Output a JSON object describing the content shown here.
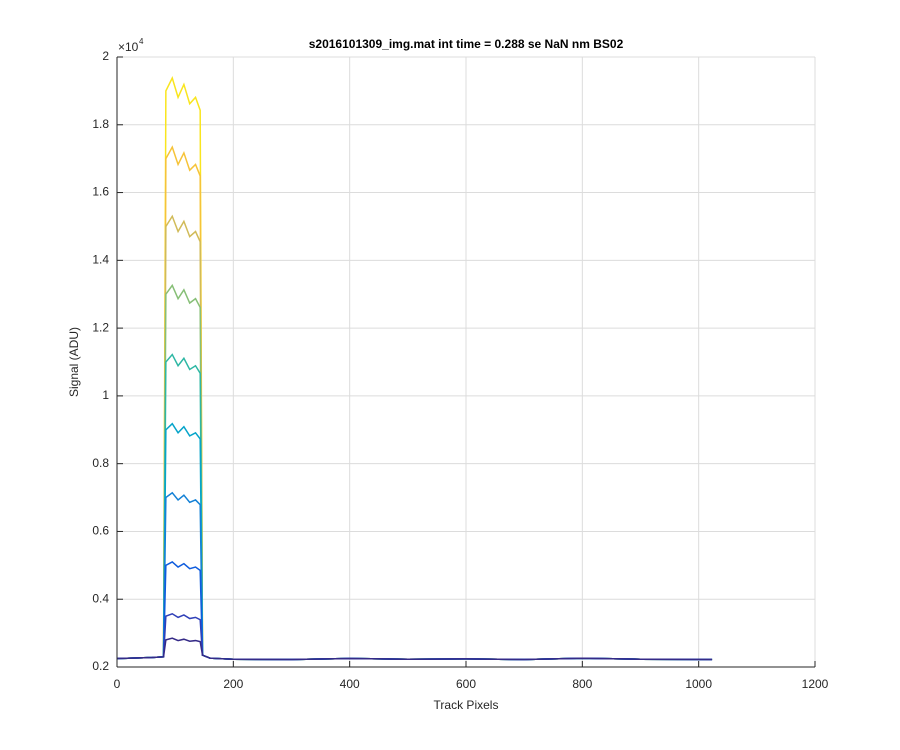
{
  "chart_data": {
    "type": "line",
    "title": "s2016101309_img.mat int time = 0.288 se  NaN nm BS02",
    "x_label": "Track Pixels",
    "y_label": "Signal (ADU)",
    "y_multiplier": {
      "base": "×10",
      "exponent": "4"
    },
    "xlim": [
      0,
      1200
    ],
    "xticks": [
      0,
      200,
      400,
      600,
      800,
      1000,
      1200
    ],
    "ylim": [
      2000,
      20000
    ],
    "yticks": [
      {
        "value": 2000,
        "label": "0.2"
      },
      {
        "value": 4000,
        "label": "0.4"
      },
      {
        "value": 6000,
        "label": "0.6"
      },
      {
        "value": 8000,
        "label": "0.8"
      },
      {
        "value": 10000,
        "label": "1"
      },
      {
        "value": 12000,
        "label": "1.2"
      },
      {
        "value": 14000,
        "label": "1.4"
      },
      {
        "value": 16000,
        "label": "1.6"
      },
      {
        "value": 18000,
        "label": "1.8"
      },
      {
        "value": 20000,
        "label": "2"
      }
    ],
    "grid": true,
    "x": [
      0,
      60,
      80,
      84,
      95,
      105,
      115,
      125,
      135,
      143,
      147,
      160,
      200,
      300,
      400,
      500,
      600,
      700,
      800,
      900,
      1023
    ],
    "series": [
      {
        "color": "#f9e51e",
        "values": [
          2250,
          2280,
          2300,
          19000,
          19380,
          18810,
          19190,
          18620,
          18810,
          18430,
          2350,
          2260,
          2230,
          2220,
          2250,
          2230,
          2240,
          2220,
          2260,
          2230,
          2220
        ]
      },
      {
        "color": "#f6c339",
        "values": [
          2250,
          2280,
          2300,
          17000,
          17340,
          16830,
          17170,
          16660,
          16830,
          16490,
          2350,
          2260,
          2230,
          2220,
          2250,
          2230,
          2240,
          2220,
          2260,
          2230,
          2220
        ]
      },
      {
        "color": "#d1bb59",
        "values": [
          2250,
          2280,
          2300,
          15000,
          15300,
          14850,
          15150,
          14700,
          14850,
          14550,
          2350,
          2260,
          2230,
          2220,
          2250,
          2230,
          2240,
          2220,
          2260,
          2230,
          2220
        ]
      },
      {
        "color": "#87bf77",
        "values": [
          2250,
          2280,
          2300,
          13000,
          13260,
          12870,
          13130,
          12740,
          12870,
          12610,
          2350,
          2260,
          2230,
          2220,
          2250,
          2230,
          2240,
          2220,
          2260,
          2230,
          2220
        ]
      },
      {
        "color": "#2eb7a4",
        "values": [
          2250,
          2280,
          2300,
          11000,
          11220,
          10890,
          11110,
          10780,
          10890,
          10670,
          2350,
          2260,
          2230,
          2220,
          2250,
          2230,
          2240,
          2220,
          2260,
          2230,
          2220
        ]
      },
      {
        "color": "#06a4ca",
        "values": [
          2250,
          2280,
          2300,
          9000,
          9180,
          8910,
          9090,
          8820,
          8910,
          8730,
          2350,
          2260,
          2230,
          2220,
          2250,
          2230,
          2240,
          2220,
          2260,
          2230,
          2220
        ]
      },
      {
        "color": "#1481d6",
        "values": [
          2250,
          2280,
          2300,
          7000,
          7140,
          6930,
          7070,
          6860,
          6930,
          6790,
          2350,
          2260,
          2230,
          2220,
          2250,
          2230,
          2240,
          2220,
          2260,
          2230,
          2220
        ]
      },
      {
        "color": "#0f5cdd",
        "values": [
          2250,
          2280,
          2300,
          5000,
          5100,
          4950,
          5050,
          4900,
          4950,
          4850,
          2350,
          2260,
          2230,
          2220,
          2250,
          2230,
          2240,
          2220,
          2260,
          2230,
          2220
        ]
      },
      {
        "color": "#3040b8",
        "values": [
          2250,
          2280,
          2300,
          3500,
          3570,
          3465,
          3535,
          3430,
          3465,
          3395,
          2350,
          2260,
          2230,
          2220,
          2250,
          2230,
          2240,
          2220,
          2260,
          2230,
          2220
        ]
      },
      {
        "color": "#352a87",
        "values": [
          2250,
          2280,
          2300,
          2800,
          2850,
          2780,
          2820,
          2760,
          2780,
          2750,
          2350,
          2260,
          2230,
          2220,
          2250,
          2230,
          2240,
          2220,
          2260,
          2230,
          2220
        ]
      }
    ]
  }
}
